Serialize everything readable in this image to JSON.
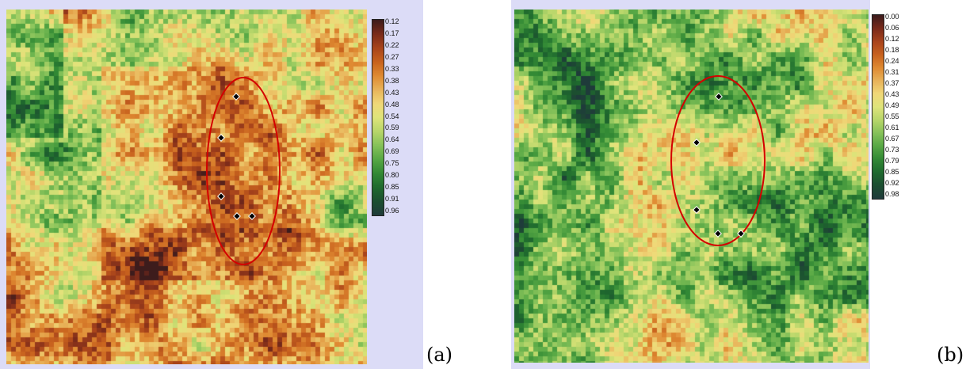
{
  "panels": [
    {
      "label": "(a)",
      "legend_ticks": [
        "0.12",
        "0.17",
        "0.22",
        "0.27",
        "0.33",
        "0.38",
        "0.43",
        "0.48",
        "0.54",
        "0.59",
        "0.64",
        "0.69",
        "0.75",
        "0.80",
        "0.85",
        "0.91",
        "0.96"
      ],
      "markers": 5,
      "cmap_reversed_top": "#3a1f1f"
    },
    {
      "label": "(b)",
      "legend_ticks": [
        "0.00",
        "0.06",
        "0.12",
        "0.18",
        "0.24",
        "0.31",
        "0.37",
        "0.43",
        "0.49",
        "0.55",
        "0.61",
        "0.67",
        "0.73",
        "0.79",
        "0.85",
        "0.92",
        "0.98"
      ],
      "markers": 6
    }
  ],
  "colors": {
    "panel_bg": "#dcdcf7",
    "ellipse": "#d40000",
    "colormap": [
      "#3d1c1c",
      "#7a2a1a",
      "#a8441b",
      "#c8621e",
      "#df8a32",
      "#e8b35a",
      "#f0d878",
      "#dfe47a",
      "#b8d66a",
      "#86c25a",
      "#58a845",
      "#338a35",
      "#1f6a2e",
      "#1c4f30",
      "#1f3b3a"
    ]
  }
}
